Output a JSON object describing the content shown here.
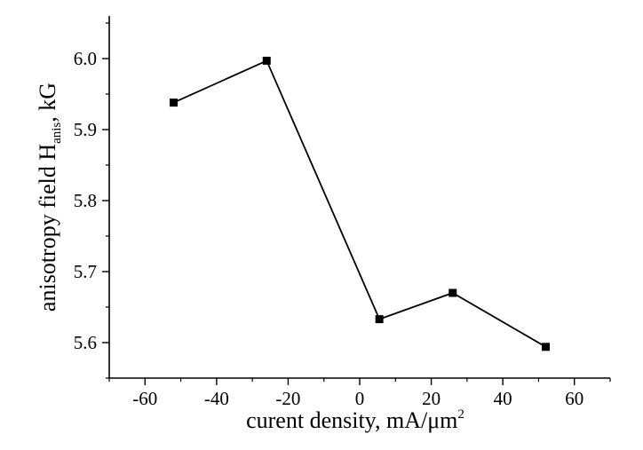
{
  "chart_data": {
    "type": "line",
    "title": "",
    "xlabel": "curent density, mA/μm",
    "xlabel_sup": "2",
    "ylabel_prefix": "anisotropy field H",
    "ylabel_sub": "anis",
    "ylabel_suffix": ", kG",
    "xlim": [
      -70,
      70
    ],
    "ylim": [
      5.55,
      6.06
    ],
    "xticks": [
      -60,
      -40,
      -20,
      0,
      20,
      40,
      60
    ],
    "xtick_labels": [
      "-60",
      "-40",
      "-20",
      "0",
      "20",
      "40",
      "60"
    ],
    "yticks": [
      5.6,
      5.7,
      5.8,
      5.9,
      6.0
    ],
    "ytick_labels": [
      "5.6",
      "5.7",
      "5.8",
      "5.9",
      "6.0"
    ],
    "grid": false,
    "series": [
      {
        "x": [
          -52,
          -26,
          5.5,
          26,
          52
        ],
        "y": [
          5.938,
          5.997,
          5.633,
          5.67,
          5.594
        ]
      }
    ],
    "marker": "square",
    "line_color": "#000000",
    "marker_color": "#000000"
  }
}
